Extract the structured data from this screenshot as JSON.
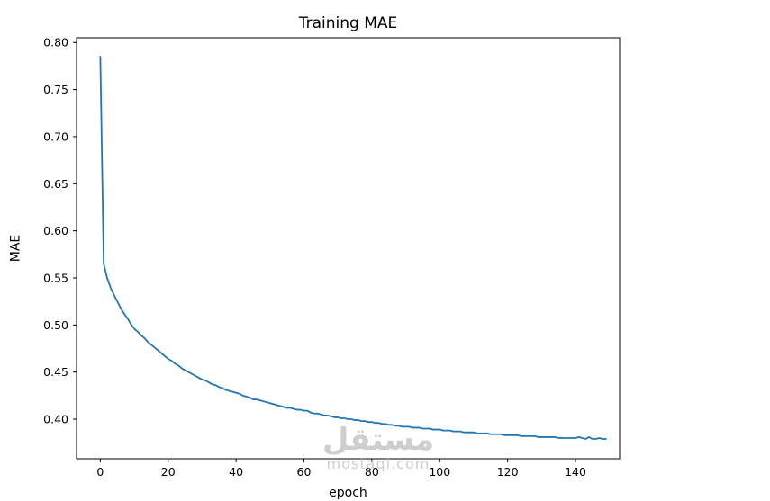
{
  "chart_data": {
    "type": "line",
    "title": "Training MAE",
    "xlabel": "epoch",
    "ylabel": "MAE",
    "grid": false,
    "legend": "none",
    "line_color": "#1f77b4",
    "line_width": 1.8,
    "xlim": [
      -7,
      153
    ],
    "ylim": [
      0.358,
      0.805
    ],
    "xticks": {
      "values": [
        0,
        20,
        40,
        60,
        80,
        100,
        120,
        140
      ],
      "labels": [
        "0",
        "20",
        "40",
        "60",
        "80",
        "100",
        "120",
        "140"
      ]
    },
    "yticks": {
      "values": [
        0.4,
        0.45,
        0.5,
        0.55,
        0.6,
        0.65,
        0.7,
        0.75,
        0.8
      ],
      "labels": [
        "0.40",
        "0.45",
        "0.50",
        "0.55",
        "0.60",
        "0.65",
        "0.70",
        "0.75",
        "0.80"
      ]
    },
    "x": [
      0,
      1,
      2,
      3,
      4,
      5,
      6,
      7,
      8,
      9,
      10,
      11,
      12,
      13,
      14,
      15,
      16,
      17,
      18,
      19,
      20,
      21,
      22,
      23,
      24,
      25,
      26,
      27,
      28,
      29,
      30,
      31,
      32,
      33,
      34,
      35,
      36,
      37,
      38,
      39,
      40,
      41,
      42,
      43,
      44,
      45,
      46,
      47,
      48,
      49,
      50,
      51,
      52,
      53,
      54,
      55,
      56,
      57,
      58,
      59,
      60,
      61,
      62,
      63,
      64,
      65,
      66,
      67,
      68,
      69,
      70,
      71,
      72,
      73,
      74,
      75,
      76,
      77,
      78,
      79,
      80,
      81,
      82,
      83,
      84,
      85,
      86,
      87,
      88,
      89,
      90,
      91,
      92,
      93,
      94,
      95,
      96,
      97,
      98,
      99,
      100,
      101,
      102,
      103,
      104,
      105,
      106,
      107,
      108,
      109,
      110,
      111,
      112,
      113,
      114,
      115,
      116,
      117,
      118,
      119,
      120,
      121,
      122,
      123,
      124,
      125,
      126,
      127,
      128,
      129,
      130,
      131,
      132,
      133,
      134,
      135,
      136,
      137,
      138,
      139,
      140,
      141,
      142,
      143,
      144,
      145,
      146,
      147,
      148,
      149
    ],
    "series": [
      {
        "name": "Training MAE",
        "values": [
          0.785,
          0.565,
          0.55,
          0.54,
          0.532,
          0.525,
          0.518,
          0.512,
          0.507,
          0.501,
          0.496,
          0.493,
          0.489,
          0.486,
          0.482,
          0.479,
          0.476,
          0.473,
          0.47,
          0.467,
          0.464,
          0.462,
          0.459,
          0.457,
          0.454,
          0.452,
          0.45,
          0.448,
          0.446,
          0.444,
          0.442,
          0.441,
          0.439,
          0.437,
          0.436,
          0.434,
          0.433,
          0.431,
          0.43,
          0.429,
          0.428,
          0.427,
          0.425,
          0.424,
          0.423,
          0.421,
          0.421,
          0.42,
          0.419,
          0.418,
          0.417,
          0.416,
          0.415,
          0.414,
          0.413,
          0.412,
          0.412,
          0.411,
          0.41,
          0.41,
          0.409,
          0.409,
          0.407,
          0.406,
          0.406,
          0.405,
          0.404,
          0.404,
          0.403,
          0.402,
          0.402,
          0.401,
          0.401,
          0.4,
          0.4,
          0.399,
          0.399,
          0.398,
          0.398,
          0.397,
          0.397,
          0.396,
          0.396,
          0.395,
          0.395,
          0.394,
          0.394,
          0.393,
          0.393,
          0.392,
          0.392,
          0.392,
          0.391,
          0.391,
          0.391,
          0.39,
          0.39,
          0.39,
          0.389,
          0.389,
          0.389,
          0.388,
          0.388,
          0.388,
          0.387,
          0.387,
          0.387,
          0.386,
          0.386,
          0.386,
          0.386,
          0.385,
          0.385,
          0.385,
          0.385,
          0.384,
          0.384,
          0.384,
          0.384,
          0.383,
          0.383,
          0.383,
          0.383,
          0.383,
          0.382,
          0.382,
          0.382,
          0.382,
          0.382,
          0.381,
          0.381,
          0.381,
          0.381,
          0.381,
          0.381,
          0.38,
          0.38,
          0.38,
          0.38,
          0.38,
          0.38,
          0.381,
          0.38,
          0.379,
          0.381,
          0.379,
          0.379,
          0.38,
          0.379,
          0.379
        ]
      }
    ]
  },
  "watermark": {
    "line1": "مستقل",
    "line2": "mostaql.com"
  }
}
